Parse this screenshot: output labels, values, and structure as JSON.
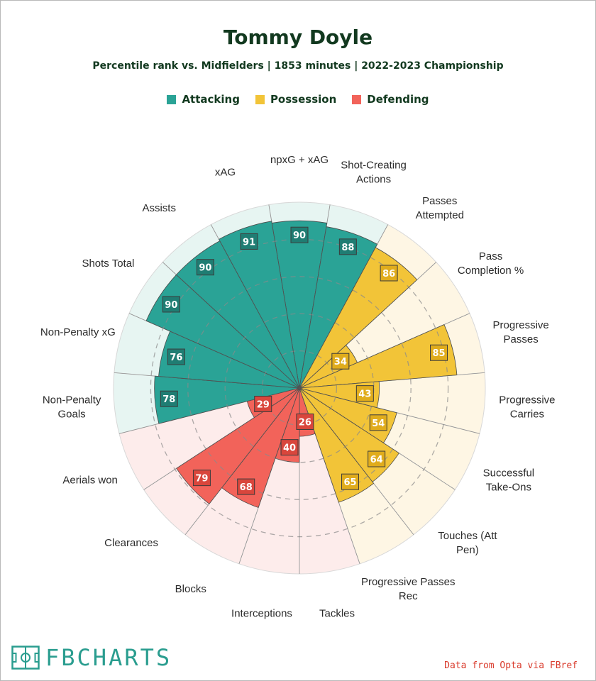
{
  "header": {
    "title": "Tommy Doyle",
    "subtitle": "Percentile rank vs. Midfielders | 1853 minutes | 2022-2023 Championship"
  },
  "colors": {
    "attacking": "#2aa396",
    "attacking_bg": "#e7f5f2",
    "possession": "#f2c438",
    "possession_bg": "#fef6e4",
    "defending": "#f2635a",
    "defending_bg": "#fdeceb",
    "title": "#12391f",
    "brand": "#2a9d8f",
    "credit": "#d93a2b"
  },
  "footer": {
    "brand_icon": "pitch-icon",
    "brand": "FBCHARTS",
    "credit": "Data from Opta via FBref"
  },
  "chart_data": {
    "type": "radar",
    "range": [
      0,
      100
    ],
    "rings": [
      20,
      40,
      60,
      80
    ],
    "legend": [
      {
        "key": "attacking",
        "label": "Attacking"
      },
      {
        "key": "possession",
        "label": "Possession"
      },
      {
        "key": "defending",
        "label": "Defending"
      }
    ],
    "metrics": [
      {
        "label": "npxG + xAG",
        "value": 90,
        "group": "attacking"
      },
      {
        "label": "Shot-Creating Actions",
        "value": 88,
        "group": "attacking"
      },
      {
        "label": "Passes Attempted",
        "value": 86,
        "group": "possession"
      },
      {
        "label": "Pass Completion %",
        "value": 34,
        "group": "possession"
      },
      {
        "label": "Progressive Passes",
        "value": 85,
        "group": "possession"
      },
      {
        "label": "Progressive Carries",
        "value": 43,
        "group": "possession"
      },
      {
        "label": "Successful Take-Ons",
        "value": 54,
        "group": "possession"
      },
      {
        "label": "Touches (Att Pen)",
        "value": 64,
        "group": "possession"
      },
      {
        "label": "Progressive Passes Rec",
        "value": 65,
        "group": "possession"
      },
      {
        "label": "Tackles",
        "value": 26,
        "group": "defending"
      },
      {
        "label": "Interceptions",
        "value": 40,
        "group": "defending"
      },
      {
        "label": "Blocks",
        "value": 68,
        "group": "defending"
      },
      {
        "label": "Clearances",
        "value": 79,
        "group": "defending"
      },
      {
        "label": "Aerials won",
        "value": 29,
        "group": "defending"
      },
      {
        "label": "Non-Penalty Goals",
        "value": 78,
        "group": "attacking"
      },
      {
        "label": "Non-Penalty xG",
        "value": 76,
        "group": "attacking"
      },
      {
        "label": "Shots Total",
        "value": 90,
        "group": "attacking"
      },
      {
        "label": "Assists",
        "value": 90,
        "group": "attacking"
      },
      {
        "label": "xAG",
        "value": 91,
        "group": "attacking"
      }
    ]
  }
}
